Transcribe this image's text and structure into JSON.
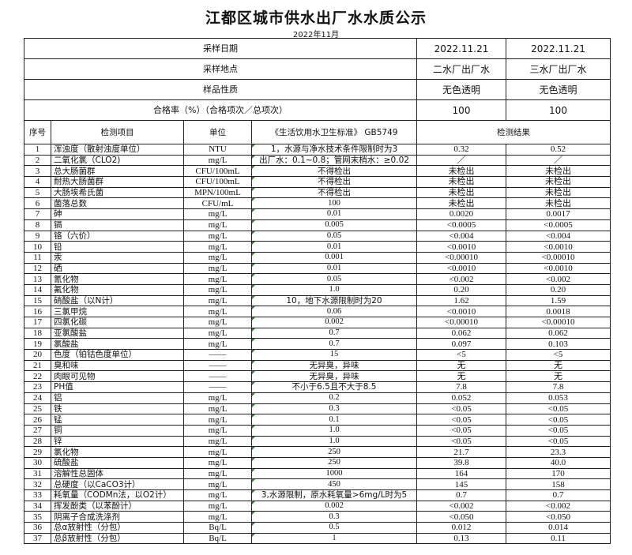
{
  "title": "江都区城市供水出厂水水质公示",
  "subtitle": "2022年11月",
  "meta": {
    "sample_date": {
      "label": "采样日期",
      "values": [
        "2022.11.21",
        "2022.11.21"
      ]
    },
    "sample_site": {
      "label": "采样地点",
      "values": [
        "二水厂出厂水",
        "三水厂出厂水"
      ]
    },
    "sample_nature": {
      "label": "样品性质",
      "values": [
        "无色透明",
        "无色透明"
      ]
    },
    "pass_rate": {
      "label": "合格率（%）（合格项次／总项次）",
      "values": [
        "100",
        "100"
      ]
    }
  },
  "header": {
    "no": "序号",
    "item": "检测项目",
    "unit": "单位",
    "standard": "《生活饮用水卫生标准》 GB5749",
    "results": "检测结果"
  },
  "rows": [
    [
      "1",
      "浑浊度（散射浊度单位）",
      "NTU",
      "1，水源与净水技术条件限制时为3",
      "0.32",
      "0.52"
    ],
    [
      "2",
      "二氧化氯（CLO2)",
      "mg/L",
      "出厂水：0.1~0.8；管网末梢水：≥0.02",
      "／",
      "／"
    ],
    [
      "3",
      "总大肠菌群",
      "CFU/100mL",
      "不得检出",
      "未检出",
      "未检出"
    ],
    [
      "4",
      "耐热大肠菌群",
      "CFU/100mL",
      "不得检出",
      "未检出",
      "未检出"
    ],
    [
      "5",
      "大肠埃希氏菌",
      "MPN/100mL",
      "不得检出",
      "未检出",
      "未检出"
    ],
    [
      "6",
      "菌落总数",
      "CFU/mL",
      "100",
      "未检出",
      "未检出"
    ],
    [
      "7",
      "砷",
      "mg/L",
      "0.01",
      "0.0020",
      "0.0017"
    ],
    [
      "8",
      "镉",
      "mg/L",
      "0.005",
      "<0.0005",
      "<0.0005"
    ],
    [
      "9",
      "铬（六价）",
      "mg/L",
      "0.05",
      "<0.004",
      "<0.004"
    ],
    [
      "10",
      "铅",
      "mg/L",
      "0.01",
      "<0.0010",
      "<0.0010"
    ],
    [
      "11",
      "汞",
      "mg/L",
      "0.001",
      "<0.00010",
      "<0.00010"
    ],
    [
      "12",
      "硒",
      "mg/L",
      "0.01",
      "<0.0010",
      "<0.0010"
    ],
    [
      "13",
      "氰化物",
      "mg/L",
      "0.05",
      "<0.002",
      "<0.002"
    ],
    [
      "14",
      "氟化物",
      "mg/L",
      "1.0",
      "0.20",
      "0.20"
    ],
    [
      "15",
      "硝酸盐（以N计）",
      "mg/L",
      "10，地下水源限制时为20",
      "1.62",
      "1.59"
    ],
    [
      "16",
      "三氯甲烷",
      "mg/L",
      "0.06",
      "<0.0010",
      "0.0018"
    ],
    [
      "17",
      "四氯化碳",
      "mg/L",
      "0.002",
      "<0.00010",
      "<0.00010"
    ],
    [
      "18",
      "亚氯酸盐",
      "mg/L",
      "0.7",
      "0.062",
      "0.062"
    ],
    [
      "19",
      "氯酸盐",
      "mg/L",
      "0.7",
      "0.097",
      "0.103"
    ],
    [
      "20",
      "色度（铂钴色度单位）",
      "——",
      "15",
      "<5",
      "<5"
    ],
    [
      "21",
      "臭和味",
      "——",
      "无异臭，异味",
      "无",
      "无"
    ],
    [
      "22",
      "肉眼可见物",
      "——",
      "无异臭，异味",
      "无",
      "无"
    ],
    [
      "23",
      "PH值",
      "——",
      "不小于6.5且不大于8.5",
      "7.8",
      "7.8"
    ],
    [
      "24",
      "铝",
      "mg/L",
      "0.2",
      "0.052",
      "0.053"
    ],
    [
      "25",
      "铁",
      "mg/L",
      "0.3",
      "<0.05",
      "<0.05"
    ],
    [
      "26",
      "锰",
      "mg/L",
      "0.1",
      "<0.05",
      "<0.05"
    ],
    [
      "27",
      "铜",
      "mg/L",
      "1.0",
      "<0.05",
      "<0.05"
    ],
    [
      "28",
      "锌",
      "mg/L",
      "1.0",
      "<0.05",
      "<0.05"
    ],
    [
      "29",
      "氯化物",
      "mg/L",
      "250",
      "21.7",
      "23.3"
    ],
    [
      "30",
      "硫酸盐",
      "mg/L",
      "250",
      "39.8",
      "40.0"
    ],
    [
      "31",
      "溶解性总固体",
      "mg/L",
      "1000",
      "164",
      "170"
    ],
    [
      "32",
      "总硬度（以CaCO3计）",
      "mg/L",
      "450",
      "145",
      "158"
    ],
    [
      "33",
      "耗氧量（CODMn法，以O2计）",
      "mg/L",
      "3,水源限制，原水耗氧量>6mg/L时为5",
      "0.7",
      "0.7"
    ],
    [
      "34",
      "挥发酚类（以苯酚计）",
      "mg/L",
      "0.002",
      "<0.002",
      "<0.002"
    ],
    [
      "35",
      "阴离子合成洗涤剂",
      "mg/L",
      "0.3",
      "<0.050",
      "<0.050"
    ],
    [
      "36",
      "总α放射性（分包）",
      "Bq/L",
      "0.5",
      "0.012",
      "0.014"
    ],
    [
      "37",
      "总β放射性（分包）",
      "Bq/L",
      "1",
      "0.13",
      "0.11"
    ]
  ]
}
